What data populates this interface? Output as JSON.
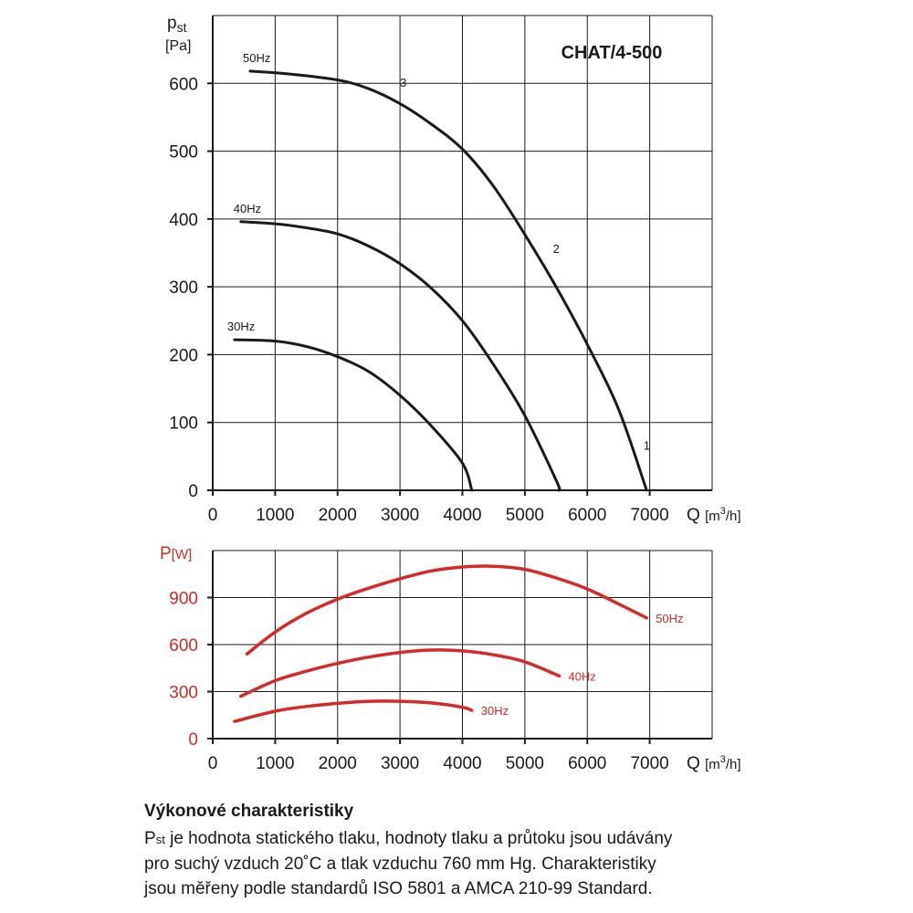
{
  "chart_data": [
    {
      "type": "line",
      "title": "CHAT/4-500",
      "ylabel_main": "p",
      "ylabel_sub": "st",
      "ylabel_unit": "[Pa]",
      "xlabel": "Q",
      "xlabel_unit_pre": "[m",
      "xlabel_unit_sup": "3",
      "xlabel_unit_post": "/h]",
      "xlim": [
        0,
        8000
      ],
      "ylim": [
        0,
        700
      ],
      "xticks": [
        0,
        1000,
        2000,
        3000,
        4000,
        5000,
        6000,
        7000
      ],
      "yticks": [
        0,
        100,
        200,
        300,
        400,
        500,
        600
      ],
      "grid": true,
      "line_color": "#1a1a1a",
      "series": [
        {
          "name": "50Hz",
          "x": [
            600,
            1200,
            2000,
            2500,
            3000,
            3500,
            4000,
            4500,
            5000,
            5500,
            6000,
            6500,
            6950
          ],
          "y": [
            618,
            614,
            605,
            592,
            570,
            540,
            503,
            448,
            377,
            300,
            215,
            120,
            0
          ]
        },
        {
          "name": "40Hz",
          "x": [
            450,
            1000,
            1500,
            2000,
            2500,
            3000,
            3500,
            4000,
            4500,
            5000,
            5500,
            5550
          ],
          "y": [
            396,
            393,
            387,
            378,
            360,
            334,
            298,
            250,
            185,
            110,
            15,
            0
          ]
        },
        {
          "name": "30Hz",
          "x": [
            350,
            1000,
            1500,
            2000,
            2500,
            3000,
            3500,
            4000,
            4150
          ],
          "y": [
            222,
            220,
            212,
            197,
            175,
            140,
            95,
            40,
            0
          ]
        }
      ],
      "point_labels": [
        {
          "text": "3",
          "x": 3000,
          "y": 595
        },
        {
          "text": "2",
          "x": 5450,
          "y": 350
        },
        {
          "text": "1",
          "x": 6900,
          "y": 60
        }
      ]
    },
    {
      "type": "line",
      "ylabel_main": "P",
      "ylabel_unit": "[W]",
      "xlabel": "Q",
      "xlabel_unit_pre": "[m",
      "xlabel_unit_sup": "3",
      "xlabel_unit_post": "/h]",
      "xlim": [
        0,
        8000
      ],
      "ylim": [
        0,
        1200
      ],
      "xticks": [
        0,
        1000,
        2000,
        3000,
        4000,
        5000,
        6000,
        7000
      ],
      "yticks": [
        0,
        300,
        600,
        900
      ],
      "grid": true,
      "line_color": "#d42a2a",
      "series": [
        {
          "name": "50Hz",
          "x": [
            550,
            1000,
            1500,
            2000,
            2500,
            3000,
            3500,
            4000,
            4500,
            5000,
            5500,
            6000,
            6500,
            6950
          ],
          "y": [
            540,
            680,
            800,
            890,
            960,
            1020,
            1070,
            1095,
            1100,
            1080,
            1025,
            955,
            860,
            770
          ]
        },
        {
          "name": "40Hz",
          "x": [
            450,
            1000,
            1500,
            2000,
            2500,
            3000,
            3500,
            4000,
            4500,
            5000,
            5550
          ],
          "y": [
            270,
            370,
            430,
            480,
            520,
            550,
            565,
            560,
            535,
            490,
            400
          ]
        },
        {
          "name": "30Hz",
          "x": [
            350,
            1000,
            1500,
            2000,
            2500,
            3000,
            3500,
            4000,
            4150
          ],
          "y": [
            110,
            175,
            205,
            225,
            238,
            238,
            228,
            200,
            180
          ]
        }
      ]
    }
  ],
  "caption": {
    "title": "Výkonové charakteristiky",
    "line1_sym": "P",
    "line1_sub": "st",
    "line1_rest": " je hodnota statického tlaku, hodnoty tlaku a průtoku jsou udávány",
    "line2": "pro suchý vzduch 20˚C a tlak vzduchu 760 mm Hg. Charakteristiky",
    "line3": "jsou měřeny podle standardů ISO 5801 a AMCA 210-99 Standard."
  }
}
